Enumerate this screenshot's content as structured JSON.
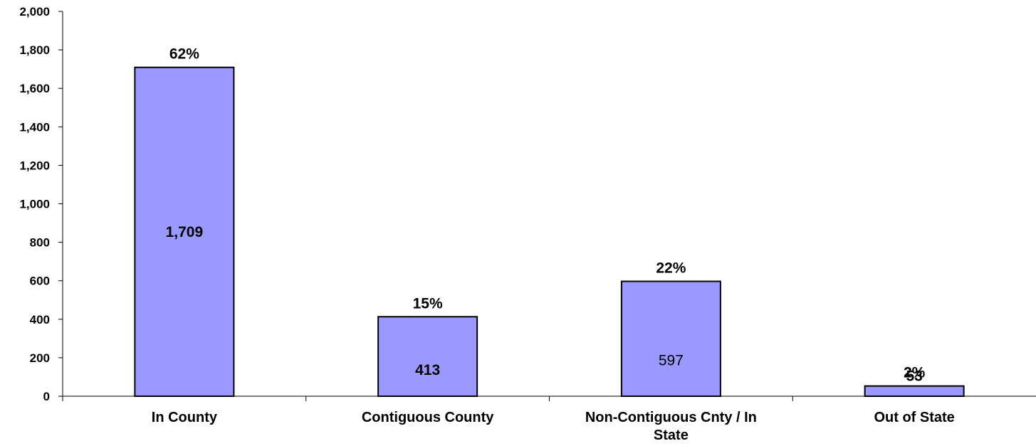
{
  "chart_data": {
    "type": "bar",
    "categories": [
      "In County",
      "Contiguous County",
      "Non-Contiguous Cnty / In State",
      "Out of State"
    ],
    "category_lines": [
      [
        "In County"
      ],
      [
        "Contiguous County"
      ],
      [
        "Non-Contiguous Cnty / In",
        "State"
      ],
      [
        "Out of State"
      ]
    ],
    "values": [
      1709,
      413,
      597,
      53
    ],
    "value_labels": [
      "1,709",
      "413",
      "597",
      "53"
    ],
    "value_label_bold": [
      true,
      true,
      false,
      true
    ],
    "percent_labels": [
      "62%",
      "15%",
      "22%",
      "2%"
    ],
    "yticks": [
      "0",
      "200",
      "400",
      "600",
      "800",
      "1,000",
      "1,200",
      "1,400",
      "1,600",
      "1,800",
      "2,000"
    ],
    "ylim": [
      0,
      2000
    ],
    "bar_color": "#9999ff",
    "bar_edge_color": "#000000",
    "title": "",
    "xlabel": "",
    "ylabel": "",
    "grid": false,
    "legend": "none"
  }
}
